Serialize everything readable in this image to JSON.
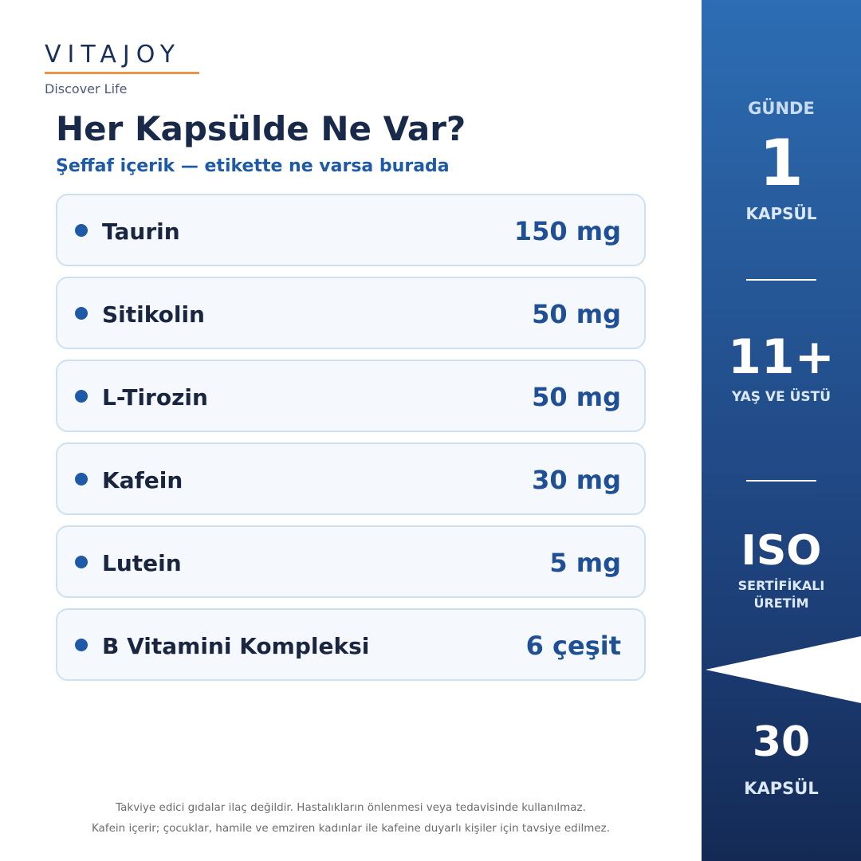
{
  "brand": {
    "name": "VITAJOY",
    "tagline": "Discover Life"
  },
  "header": {
    "title": "Her Kapsülde Ne Var?",
    "subtitle": "Şeffaf içerik — etikette ne varsa burada"
  },
  "ingredients": [
    {
      "name": "Taurin",
      "amount": "150 mg"
    },
    {
      "name": "Sitikolin",
      "amount": "50 mg"
    },
    {
      "name": "L-Tirozin",
      "amount": "50 mg"
    },
    {
      "name": "Kafein",
      "amount": "30 mg"
    },
    {
      "name": "Lutein",
      "amount": "5 mg"
    },
    {
      "name": "B Vitamini Kompleksi",
      "amount": "6 çeşit"
    }
  ],
  "sidebar": {
    "dose": {
      "top": "GÜNDE",
      "big": "1",
      "bottom": "KAPSÜL"
    },
    "age": {
      "big": "11+",
      "bottom": "YAŞ VE ÜSTÜ"
    },
    "iso": {
      "big": "ISO",
      "bottom": [
        "SERTİFİKALI",
        "ÜRETİM"
      ]
    },
    "pack": {
      "big": "30",
      "bottom": "KAPSÜL"
    }
  },
  "footer": [
    "Takviye edici gıdalar ilaç değildir. Hastalıkların önlenmesi veya tedavisinde kullanılmaz.",
    "Kafein içerir; çocuklar, hamile ve emziren kadınlar ile kafeine duyarlı kişiler için tavsiye edilmez."
  ]
}
